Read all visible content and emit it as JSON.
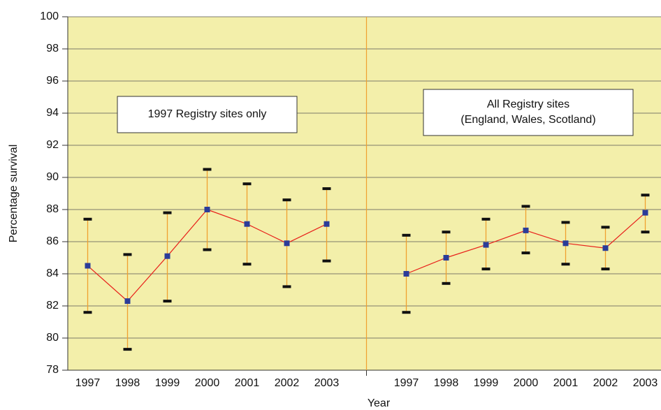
{
  "chart_data": {
    "type": "errorline",
    "x_label": "Year",
    "y_label": "Percentage survival",
    "categories": [
      "1997",
      "1998",
      "1999",
      "2000",
      "2001",
      "2002",
      "2003",
      null,
      "1997",
      "1998",
      "1999",
      "2000",
      "2001",
      "2002",
      "2003"
    ],
    "series": [
      {
        "color": "#e8201a",
        "marker_color": "#2b3c99",
        "error_color": "#f0a030",
        "values": [
          84.5,
          82.3,
          85.1,
          88.0,
          87.1,
          85.9,
          87.1,
          null,
          84.0,
          85.0,
          85.8,
          86.7,
          85.9,
          85.6,
          87.8
        ],
        "lower": [
          81.6,
          79.3,
          82.3,
          85.5,
          84.6,
          83.2,
          84.8,
          null,
          81.6,
          83.4,
          84.3,
          85.3,
          84.6,
          84.3,
          86.6
        ],
        "upper": [
          87.4,
          85.2,
          87.8,
          90.5,
          89.6,
          88.6,
          89.3,
          null,
          86.4,
          86.6,
          87.4,
          88.2,
          87.2,
          86.9,
          88.9
        ]
      }
    ],
    "ylim": [
      78,
      100
    ],
    "yticks": [
      78,
      80,
      82,
      84,
      86,
      88,
      90,
      92,
      94,
      96,
      98,
      100
    ],
    "grid": true,
    "annotations": [
      {
        "lines": [
          "1997 Registry sites only"
        ]
      },
      {
        "lines": [
          "All Registry sites",
          "(England, Wales, Scotland)"
        ]
      }
    ]
  }
}
